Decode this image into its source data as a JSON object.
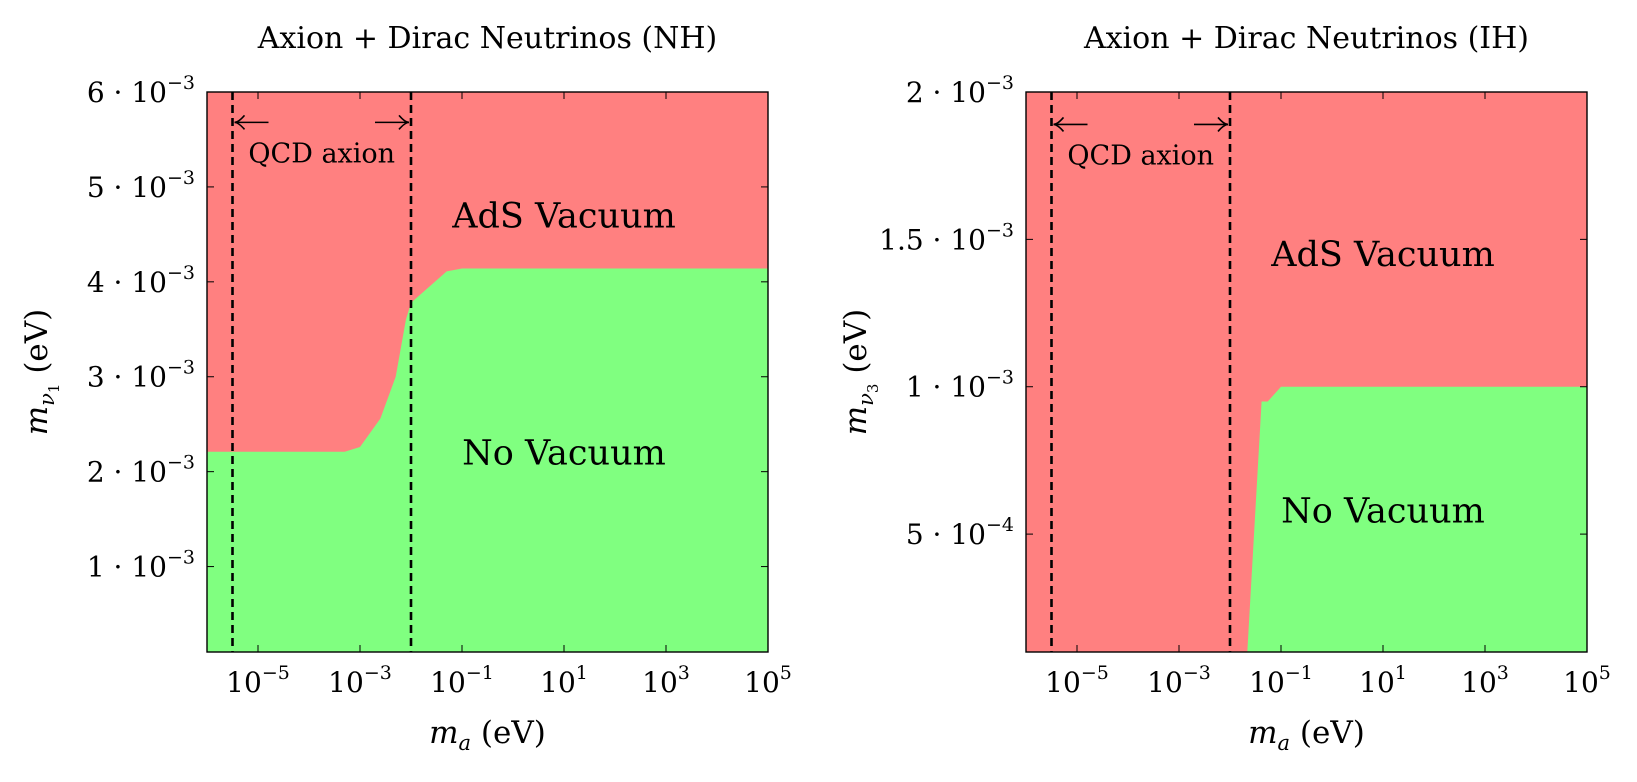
{
  "chart_data": [
    {
      "type": "area",
      "title": "Axion + Dirac Neutrinos (NH)",
      "xlabel_var": "m",
      "xlabel_sub": "a",
      "xlabel_unit": "(eV)",
      "ylabel_var": "m",
      "ylabel_sub": "ν",
      "ylabel_subsub": "1",
      "ylabel_unit": "(eV)",
      "x_scale": "log10",
      "xlim_exp": [
        -6.0,
        5.0
      ],
      "ylim": [
        0.0001,
        0.006
      ],
      "x_ticks": [
        {
          "exp": -5,
          "base": "10",
          "pow": "−5"
        },
        {
          "exp": -3,
          "base": "10",
          "pow": "−3"
        },
        {
          "exp": -1,
          "base": "10",
          "pow": "−1"
        },
        {
          "exp": 1,
          "base": "10",
          "pow": "1"
        },
        {
          "exp": 3,
          "base": "10",
          "pow": "3"
        },
        {
          "exp": 5,
          "base": "10",
          "pow": "5"
        }
      ],
      "y_ticks": [
        {
          "value": 0.001,
          "mant": "1 · 10",
          "pow": "−3"
        },
        {
          "value": 0.002,
          "mant": "2 · 10",
          "pow": "−3"
        },
        {
          "value": 0.003,
          "mant": "3 · 10",
          "pow": "−3"
        },
        {
          "value": 0.004,
          "mant": "4 · 10",
          "pow": "−3"
        },
        {
          "value": 0.005,
          "mant": "5 · 10",
          "pow": "−3"
        },
        {
          "value": 0.006,
          "mant": "6 · 10",
          "pow": "−3"
        }
      ],
      "boundary": [
        {
          "log_x": -6.0,
          "y": 0.00221
        },
        {
          "log_x": -3.3,
          "y": 0.00221
        },
        {
          "log_x": -3.0,
          "y": 0.00226
        },
        {
          "log_x": -2.6,
          "y": 0.00256
        },
        {
          "log_x": -2.3,
          "y": 0.003
        },
        {
          "log_x": -2.1,
          "y": 0.0036
        },
        {
          "log_x": -2.0,
          "y": 0.00378
        },
        {
          "log_x": -1.3,
          "y": 0.00411
        },
        {
          "log_x": -1.0,
          "y": 0.00414
        },
        {
          "log_x": 5.0,
          "y": 0.00414
        }
      ],
      "qcd_band_exp": [
        -5.5,
        -2.0
      ],
      "qcd_label": "QCD axion",
      "qcd_arrow_y": 0.00568,
      "regions": [
        {
          "name": "AdS Vacuum",
          "color": "#ff8080",
          "label_log_x": 1.0,
          "label_y": 0.0047
        },
        {
          "name": "No Vacuum",
          "color": "#80ff80",
          "label_log_x": 1.0,
          "label_y": 0.0022
        }
      ]
    },
    {
      "type": "area",
      "title": "Axion + Dirac Neutrinos (IH)",
      "xlabel_var": "m",
      "xlabel_sub": "a",
      "xlabel_unit": "(eV)",
      "ylabel_var": "m",
      "ylabel_sub": "ν",
      "ylabel_subsub": "3",
      "ylabel_unit": "(eV)",
      "x_scale": "log10",
      "xlim_exp": [
        -6.0,
        5.0
      ],
      "ylim": [
        0.0001,
        0.002
      ],
      "x_ticks": [
        {
          "exp": -5,
          "base": "10",
          "pow": "−5"
        },
        {
          "exp": -3,
          "base": "10",
          "pow": "−3"
        },
        {
          "exp": -1,
          "base": "10",
          "pow": "−1"
        },
        {
          "exp": 1,
          "base": "10",
          "pow": "1"
        },
        {
          "exp": 3,
          "base": "10",
          "pow": "3"
        },
        {
          "exp": 5,
          "base": "10",
          "pow": "5"
        }
      ],
      "y_ticks": [
        {
          "value": 0.0005,
          "mant": "5 · 10",
          "pow": "−4"
        },
        {
          "value": 0.001,
          "mant": "1 · 10",
          "pow": "−3"
        },
        {
          "value": 0.0015,
          "mant": "1.5 · 10",
          "pow": "−3"
        },
        {
          "value": 0.002,
          "mant": "2 · 10",
          "pow": "−3"
        }
      ],
      "boundary": [
        {
          "log_x": -1.66,
          "y": 0.0001
        },
        {
          "log_x": -1.38,
          "y": 0.00095
        },
        {
          "log_x": -1.26,
          "y": 0.00095
        },
        {
          "log_x": -1.0,
          "y": 0.001
        },
        {
          "log_x": 5.0,
          "y": 0.001
        }
      ],
      "green_left_open": true,
      "qcd_band_exp": [
        -5.5,
        -2.0
      ],
      "qcd_label": "QCD axion",
      "qcd_arrow_y": 0.00189,
      "regions": [
        {
          "name": "AdS Vacuum",
          "color": "#ff8080",
          "label_log_x": 1.0,
          "label_y": 0.00145
        },
        {
          "name": "No Vacuum",
          "color": "#80ff80",
          "label_log_x": 1.0,
          "label_y": 0.00058
        }
      ]
    }
  ]
}
